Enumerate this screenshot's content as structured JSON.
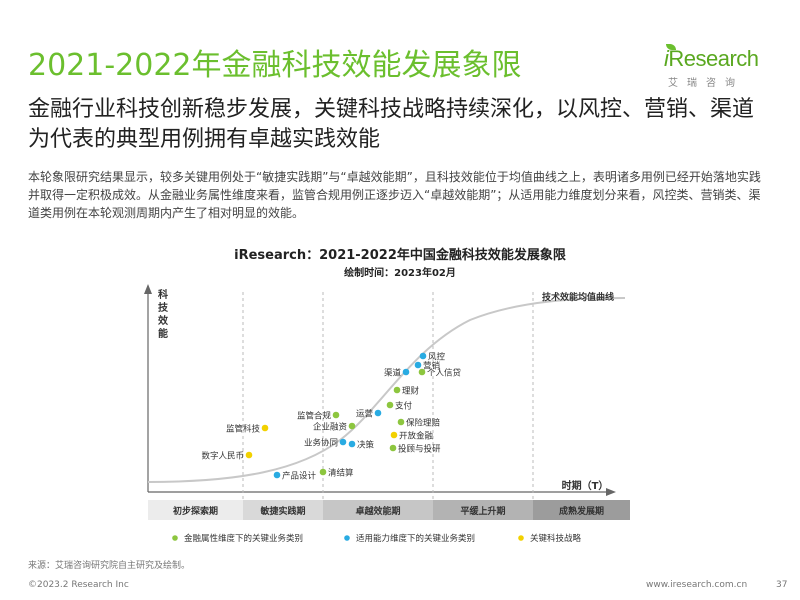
{
  "header": {
    "title": "2021-2022年金融科技效能发展象限",
    "logo_i": "i",
    "logo_text": "Research",
    "logo_sub": "艾瑞咨询"
  },
  "subtitle": "金融行业科技创新稳步发展，关键科技战略持续深化，以风控、营销、渠道为代表的典型用例拥有卓越实践效能",
  "body_text": "本轮象限研究结果显示，较多关键用例处于“敏捷实践期”与“卓越效能期”，且科技效能位于均值曲线之上，表明诸多用例已经开始落地实践并取得一定积极成效。从金融业务属性维度来看，监管合规用例正逐步迈入“卓越效能期”；从适用能力维度划分来看，风控类、营销类、渠道类用例在本轮观测周期内产生了相对明显的效能。",
  "chart_title": "iResearch：2021-2022年中国金融科技效能发展象限",
  "chart_date": "绘制时间：2023年02月",
  "chart_data": {
    "type": "scatter",
    "y_axis_label": "科技效能",
    "x_axis_label": "时期（T）",
    "curve_label": "技术效能均值曲线",
    "phases": [
      "初步探索期",
      "敏捷实践期",
      "卓越效能期",
      "平缓上升期",
      "成熟发展期"
    ],
    "legend": [
      {
        "name": "金融属性维度下的关键业务类别",
        "color": "#8dc63f"
      },
      {
        "name": "适用能力维度下的关键业务类别",
        "color": "#29abe2"
      },
      {
        "name": "关键科技战略",
        "color": "#f2d100"
      }
    ],
    "points": [
      {
        "label": "风控",
        "series": 1
      },
      {
        "label": "营销",
        "series": 1
      },
      {
        "label": "渠道",
        "series": 1
      },
      {
        "label": "个人信贷",
        "series": 0
      },
      {
        "label": "理财",
        "series": 0
      },
      {
        "label": "支付",
        "series": 0
      },
      {
        "label": "运营",
        "series": 1
      },
      {
        "label": "监管合规",
        "series": 0
      },
      {
        "label": "保险理赔",
        "series": 0
      },
      {
        "label": "企业融资",
        "series": 0
      },
      {
        "label": "开放金融",
        "series": 2
      },
      {
        "label": "业务协同",
        "series": 1
      },
      {
        "label": "决策",
        "series": 1
      },
      {
        "label": "投顾与投研",
        "series": 0
      },
      {
        "label": "监管科技",
        "series": 2
      },
      {
        "label": "数字人民币",
        "series": 2
      },
      {
        "label": "清结算",
        "series": 0
      },
      {
        "label": "产品设计",
        "series": 1
      }
    ]
  },
  "source": "来源：艾瑞咨询研究院自主研究及绘制。",
  "footer_left": "©2023.2  Research Inc",
  "footer_right": "www.iresearch.com.cn",
  "page_number": "37"
}
